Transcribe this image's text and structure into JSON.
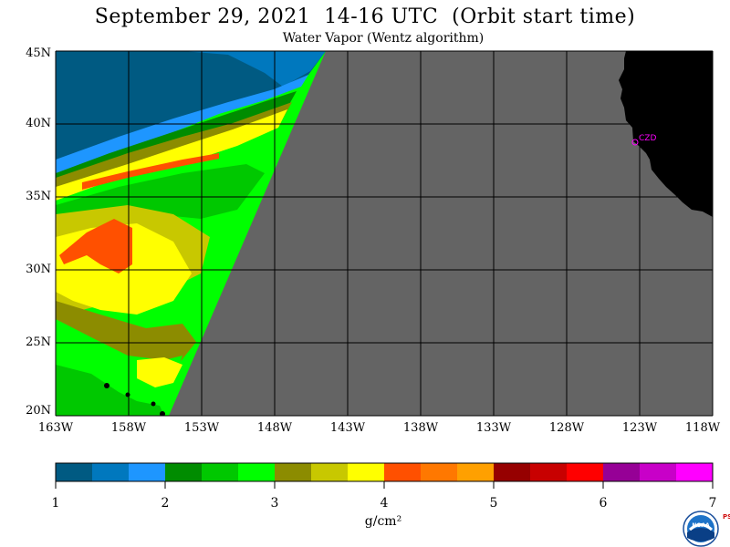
{
  "header": {
    "title": "September 29, 2021  14-16 UTC  (Orbit start time)",
    "subtitle": "Water Vapor (Wentz algorithm)"
  },
  "map": {
    "lat_labels": [
      "45N",
      "40N",
      "35N",
      "30N",
      "25N",
      "20N"
    ],
    "lon_labels": [
      "163W",
      "158W",
      "153W",
      "148W",
      "143W",
      "138W",
      "133W",
      "128W",
      "123W",
      "118W"
    ],
    "station_label": "CZD",
    "colors": {
      "no_data": "#646464",
      "land": "#000000",
      "grid": "#000000",
      "station": "#ff00ff"
    }
  },
  "colorbar": {
    "tick_labels": [
      "1",
      "2",
      "3",
      "4",
      "5",
      "6",
      "7"
    ],
    "unit": "g/cm²",
    "colors": [
      "#005a82",
      "#0078be",
      "#1e96ff",
      "#008c00",
      "#00c800",
      "#00ff00",
      "#8c8c00",
      "#c8c800",
      "#ffff00",
      "#ff5000",
      "#ff7800",
      "#ffa000",
      "#960000",
      "#c80000",
      "#ff0000",
      "#960096",
      "#c800c8",
      "#ff00ff"
    ]
  },
  "logo": {
    "name": "noaa-logo",
    "text": "NOAA",
    "side_text": "PSL"
  }
}
